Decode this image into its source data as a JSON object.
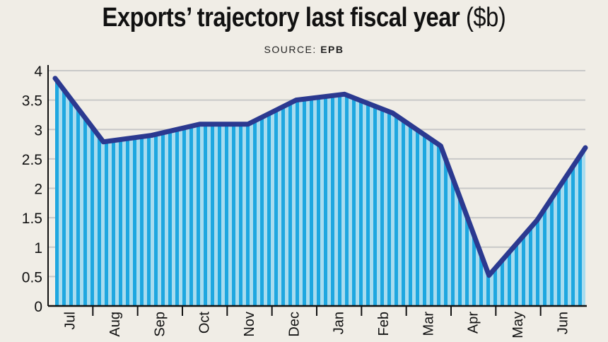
{
  "title": "Exports’ trajectory last fiscal year",
  "title_unit": "($b)",
  "source_label": "SOURCE:",
  "source_name": "EPB",
  "colors": {
    "background": "#f0ede6",
    "line": "#2b3990",
    "fill_light": "#a8dcef",
    "fill_dark": "#1ea7e0",
    "grid": "#c8c8c8",
    "axis": "#111111"
  },
  "chart_data": {
    "type": "area",
    "title": "Exports’ trajectory last fiscal year ($b)",
    "categories": [
      "Jul",
      "Aug",
      "Sep",
      "Oct",
      "Nov",
      "Dec",
      "Jan",
      "Feb",
      "Mar",
      "Apr",
      "May",
      "Jun"
    ],
    "values": [
      3.87,
      2.79,
      2.9,
      3.09,
      3.09,
      3.5,
      3.6,
      3.28,
      2.72,
      0.52,
      1.46,
      2.69
    ],
    "ylim": [
      0,
      4
    ],
    "yticks": [
      "0",
      "0.5",
      "1",
      "1.5",
      "2",
      "2.5",
      "3",
      "3.5",
      "4"
    ],
    "grid": true,
    "fill_pattern": "vertical stripes"
  }
}
